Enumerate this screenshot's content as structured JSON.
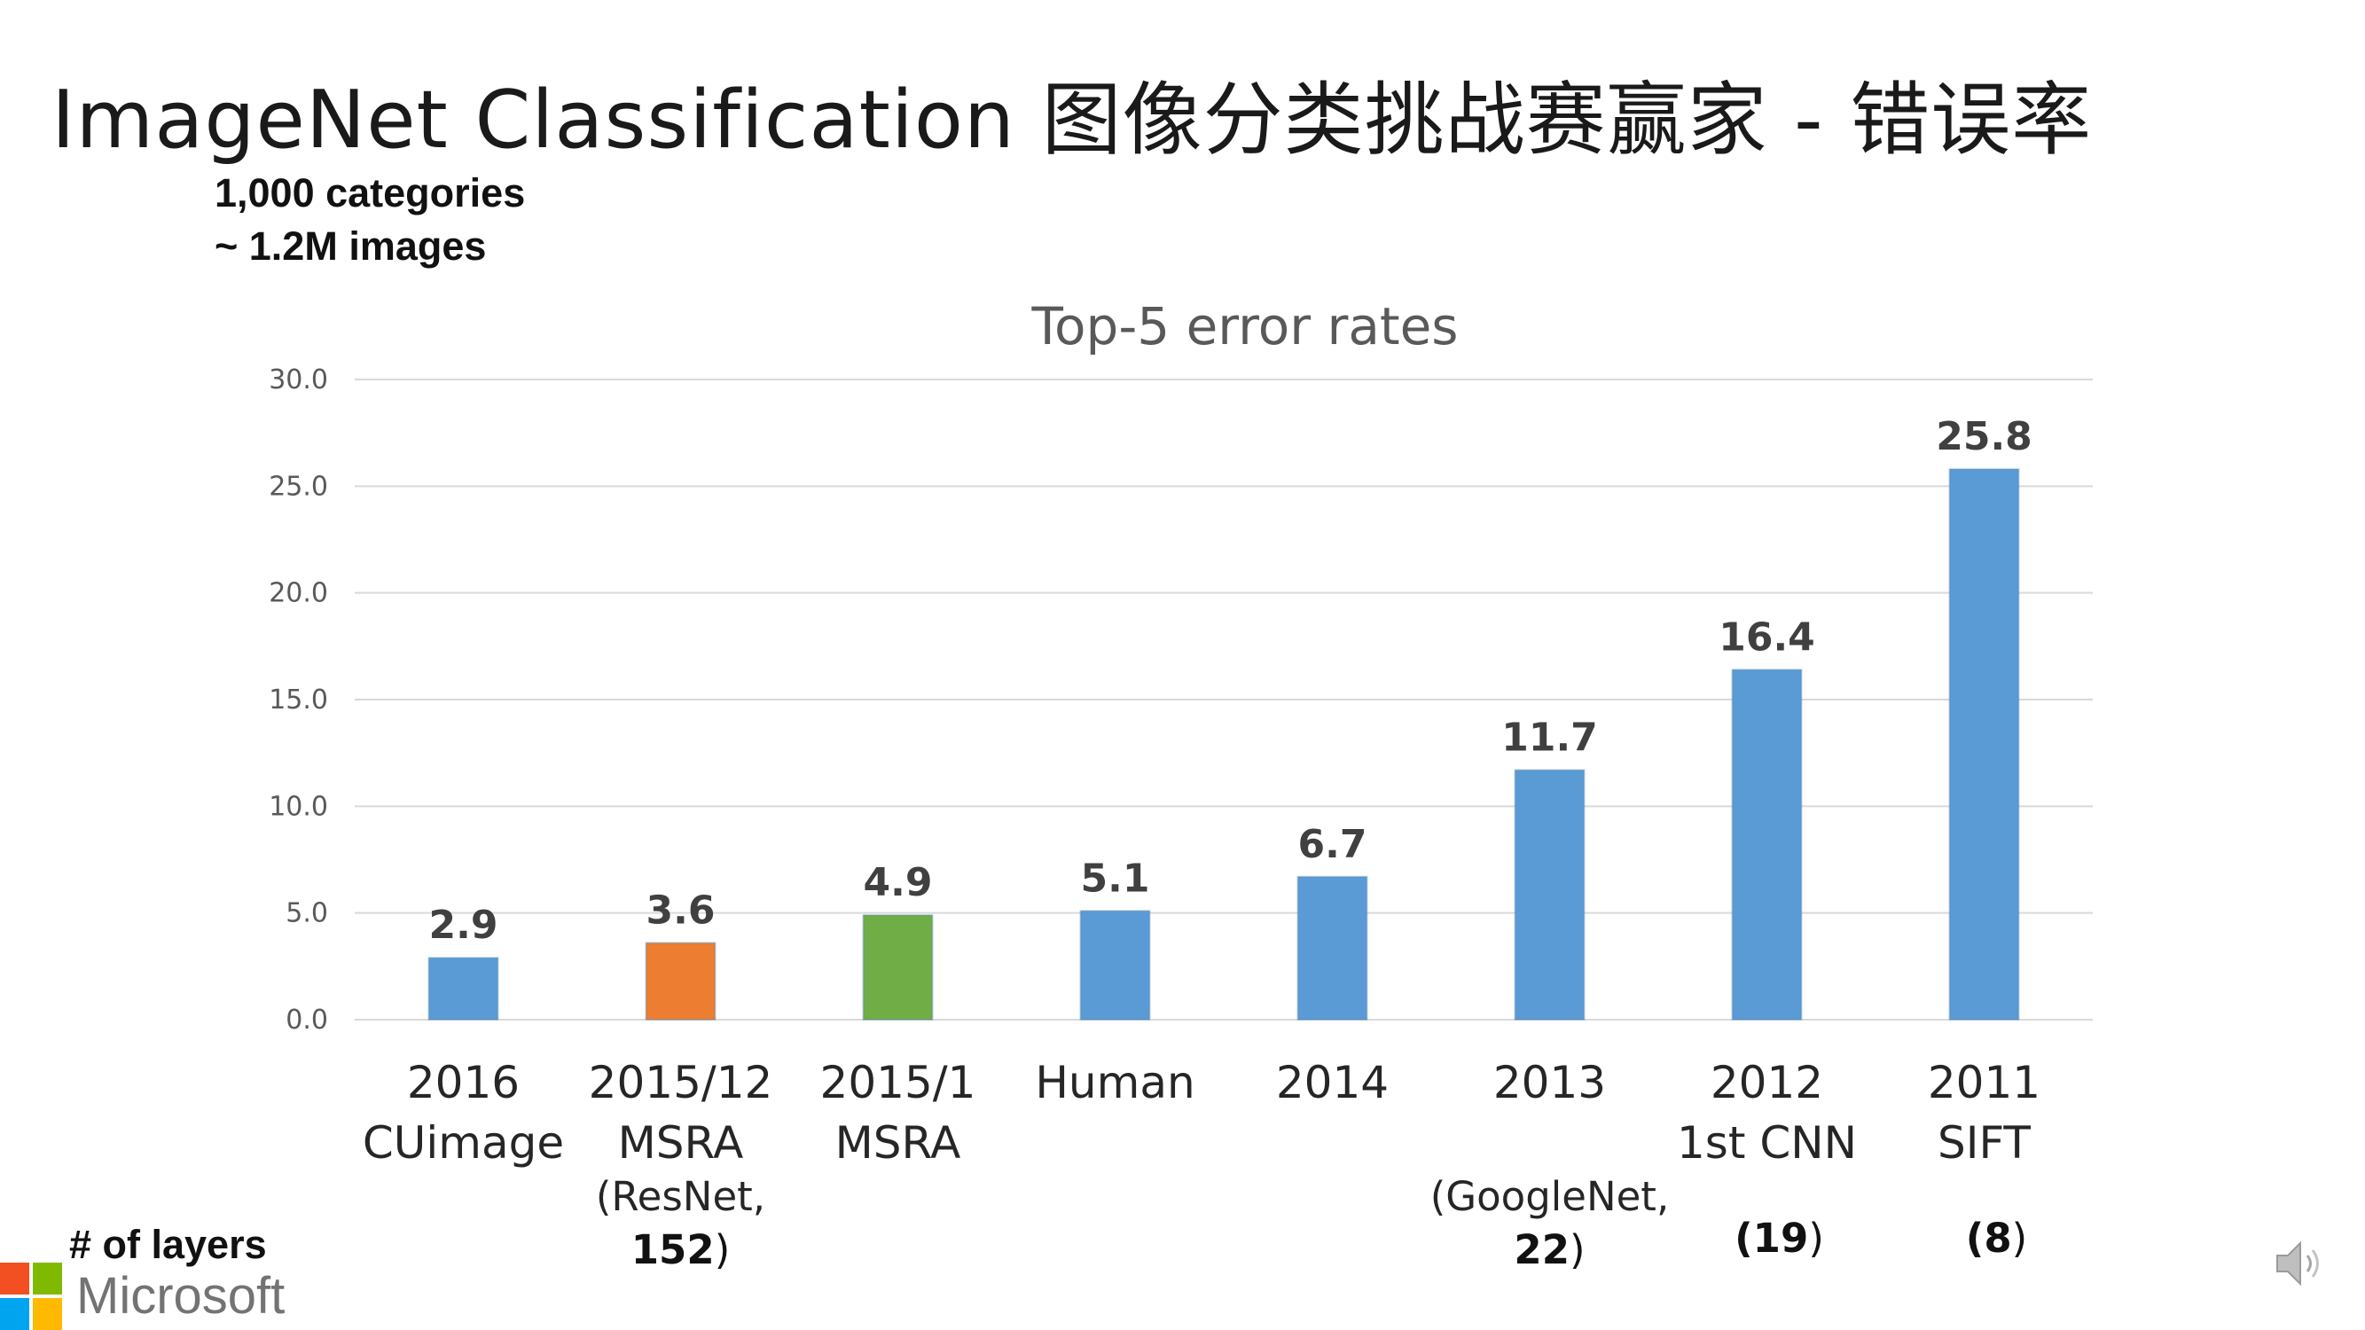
{
  "slide": {
    "title": "ImageNet Classification 图像分类挑战赛赢家 - 错误率",
    "subtitle_lines": [
      "1,000 categories",
      "~ 1.2M images"
    ],
    "layers_label": "# of layers",
    "brand": "Microsoft",
    "speaker_icon": "speaker-icon"
  },
  "colors": {
    "blue": "#5b9bd5",
    "orange": "#ed7d31",
    "green": "#70ad47",
    "grid": "#d9d9d9",
    "ms_red": "#f25022",
    "ms_green": "#7fba00",
    "ms_blue": "#00a4ef",
    "ms_yellow": "#ffb900"
  },
  "chart_data": {
    "type": "bar",
    "title": "Top-5 error rates",
    "categories": [
      [
        "2016",
        "CUimage"
      ],
      [
        "2015/12",
        "MSRA"
      ],
      [
        "2015/1",
        "MSRA"
      ],
      [
        "Human"
      ],
      [
        "2014"
      ],
      [
        "2013"
      ],
      [
        "2012",
        "1st CNN"
      ],
      [
        "2011",
        "SIFT"
      ]
    ],
    "values": [
      2.9,
      3.6,
      4.9,
      5.1,
      6.7,
      11.7,
      16.4,
      25.8
    ],
    "value_labels": [
      "2.9",
      "3.6",
      "4.9",
      "5.1",
      "6.7",
      "11.7",
      "16.4",
      "25.8"
    ],
    "bar_colors": [
      "#5b9bd5",
      "#ed7d31",
      "#70ad47",
      "#5b9bd5",
      "#5b9bd5",
      "#5b9bd5",
      "#5b9bd5",
      "#5b9bd5"
    ],
    "layer_notes": [
      [],
      [
        [
          "(ResNet,",
          false
        ],
        [
          "152",
          true,
          ")"
        ]
      ],
      [],
      [],
      [],
      [
        [
          "(GoogleNet,",
          false
        ],
        [
          "22",
          true,
          ")"
        ]
      ],
      [
        [
          "(19",
          true,
          ")"
        ]
      ],
      [
        [
          "(8",
          true,
          ")"
        ]
      ]
    ],
    "yticks": [
      "0.0",
      "5.0",
      "10.0",
      "15.0",
      "20.0",
      "25.0",
      "30.0"
    ],
    "ylim": [
      0,
      30
    ],
    "grid": true,
    "legend": "none"
  }
}
